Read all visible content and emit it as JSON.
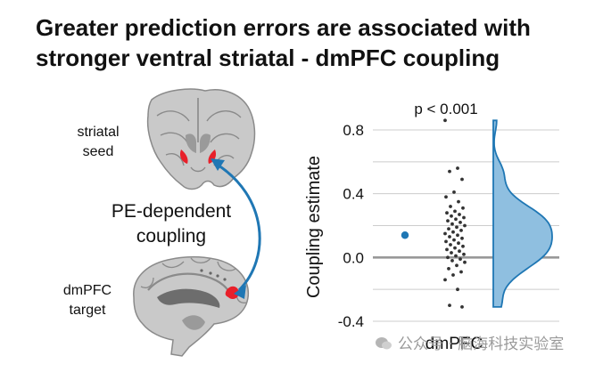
{
  "title": {
    "line1": "Greater prediction errors are associated with",
    "line2": "stronger ventral striatal - dmPFC coupling"
  },
  "schematic": {
    "seed_label_1": "striatal",
    "seed_label_2": "seed",
    "arrow_label_1": "PE-dependent",
    "arrow_label_2": "coupling",
    "target_label_1": "dmPFC",
    "target_label_2": "target"
  },
  "colors": {
    "accent": "#1f77b4",
    "density_fill": "#8fbfe0",
    "points": "#333333",
    "roi": "#e8202a",
    "grid": "#cccccc",
    "zero_line": "#999999"
  },
  "watermark": "公众号 · 脑海科技实验室",
  "chart_data": {
    "type": "scatter",
    "title": "",
    "annotation": "p < 0.001",
    "xlabel": "dmPFC",
    "ylabel": "Coupling estimate",
    "ylim": [
      -0.4,
      0.9
    ],
    "yticks": [
      -0.4,
      0.0,
      0.4,
      0.8
    ],
    "ytick_labels": [
      "-0.4",
      "0.0",
      "0.4",
      "0.8"
    ],
    "grid": true,
    "mean": {
      "value": 0.14,
      "ci": [
        0.12,
        0.16
      ]
    },
    "points": [
      0.86,
      0.56,
      0.54,
      0.49,
      0.41,
      0.38,
      0.35,
      0.32,
      0.31,
      0.29,
      0.28,
      0.27,
      0.26,
      0.25,
      0.24,
      0.23,
      0.22,
      0.21,
      0.2,
      0.19,
      0.18,
      0.17,
      0.16,
      0.15,
      0.14,
      0.13,
      0.12,
      0.11,
      0.1,
      0.09,
      0.08,
      0.07,
      0.06,
      0.05,
      0.04,
      0.03,
      0.02,
      0.01,
      0.0,
      -0.01,
      -0.02,
      -0.03,
      -0.05,
      -0.07,
      -0.09,
      -0.11,
      -0.14,
      -0.2,
      -0.3,
      -0.31
    ]
  }
}
